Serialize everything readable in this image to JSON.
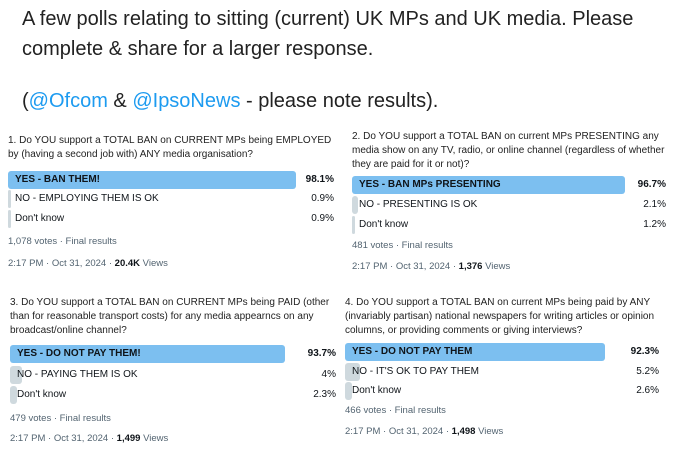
{
  "header": {
    "line1": "A few polls relating to sitting (current) UK MPs and UK media. Please",
    "line2": "complete & share for a larger response.",
    "line3_parts": [
      "(",
      "@Ofcom",
      " & ",
      "@IpsoNews",
      " - please note results)."
    ]
  },
  "polls": [
    {
      "question": "1. Do YOU support a TOTAL BAN on CURRENT MPs being EMPLOYED by (having a second job with) ANY media organisation?",
      "options": [
        {
          "label": "YES - BAN THEM!",
          "value": 98.1,
          "value_label": "98.1%"
        },
        {
          "label": "NO - EMPLOYING THEM IS OK",
          "value": 0.9,
          "value_label": "0.9%"
        },
        {
          "label": "Don't know",
          "value": 0.9,
          "value_label": "0.9%"
        }
      ],
      "votes": "1,078 votes · Final results",
      "timestamp": "2:17 PM · Oct 31, 2024 · ",
      "views": "20.4K",
      "views_label": "Views"
    },
    {
      "question": "2. Do YOU support a TOTAL BAN on current MPs PRESENTING any media show on any TV, radio, or online channel (regardless of whether they are paid for it or not)?",
      "options": [
        {
          "label": "YES - BAN MPs PRESENTING",
          "value": 96.7,
          "value_label": "96.7%"
        },
        {
          "label": "NO - PRESENTING IS OK",
          "value": 2.1,
          "value_label": "2.1%"
        },
        {
          "label": "Don't know",
          "value": 1.2,
          "value_label": "1.2%"
        }
      ],
      "votes": "481 votes · Final results",
      "timestamp": "2:17 PM · Oct 31, 2024 · ",
      "views": "1,376",
      "views_label": "Views"
    },
    {
      "question": "3. Do YOU support a TOTAL BAN on CURRENT MPs being PAID (other than for reasonable transport costs) for any media appearncs on any broadcast/online channel?",
      "options": [
        {
          "label": "YES - DO NOT PAY THEM!",
          "value": 93.7,
          "value_label": "93.7%"
        },
        {
          "label": "NO - PAYING THEM IS OK",
          "value": 4,
          "value_label": "4%"
        },
        {
          "label": "Don't know",
          "value": 2.3,
          "value_label": "2.3%"
        }
      ],
      "votes": "479 votes · Final results",
      "timestamp": "2:17 PM · Oct 31, 2024 · ",
      "views": "1,499",
      "views_label": "Views"
    },
    {
      "question": "4. Do YOU support a TOTAL BAN on current MPs being paid by ANY (invariably partisan) national newspapers for writing articles or opinion columns, or providing comments or giving interviews?",
      "options": [
        {
          "label": "YES - DO NOT PAY THEM",
          "value": 92.3,
          "value_label": "92.3%"
        },
        {
          "label": "NO - IT'S OK TO PAY THEM",
          "value": 5.2,
          "value_label": "5.2%"
        },
        {
          "label": "Don't know",
          "value": 2.6,
          "value_label": "2.6%"
        }
      ],
      "votes": "466 votes · Final results",
      "timestamp": "2:17 PM · Oct 31, 2024 · ",
      "views": "1,498",
      "views_label": "Views"
    }
  ]
}
